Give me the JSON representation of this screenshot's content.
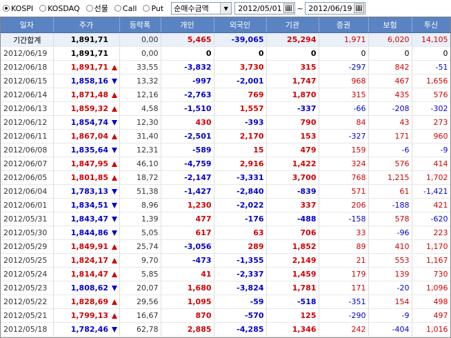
{
  "market_options": [
    {
      "label": "KOSPI",
      "selected": true
    },
    {
      "label": "KOSDAQ",
      "selected": false
    },
    {
      "label": "선물",
      "selected": false
    },
    {
      "label": "Call",
      "selected": false
    },
    {
      "label": "Put",
      "selected": false
    }
  ],
  "view_select": {
    "value": "순매수금액"
  },
  "date_range": {
    "from": "2012/05/01",
    "separator": "~",
    "to": "2012/06/19"
  },
  "colors": {
    "header": "#5a83c1",
    "up": "#d00000",
    "down": "#0000cc",
    "summary_row": "#eaf0f8"
  },
  "table": {
    "headers": [
      "일자",
      "주가",
      "등락폭",
      "개인",
      "외국인",
      "기관",
      "증권",
      "보험",
      "투신"
    ],
    "summary": {
      "date": "기간합계",
      "price": "1,891,71",
      "dir": "",
      "change": "0,00",
      "individual": "5,465",
      "foreign": "-39,065",
      "institution": "25,294",
      "securities": "1,971",
      "insurance": "6,020",
      "trust": "14,105"
    },
    "rows": [
      {
        "date": "2012/06/19",
        "price": "1,891,71",
        "dir": "",
        "change": "0,00",
        "individual": "0",
        "foreign": "0",
        "institution": "0",
        "securities": "0",
        "insurance": "0",
        "trust": "0"
      },
      {
        "date": "2012/06/18",
        "price": "1,891,71",
        "dir": "up",
        "change": "33,55",
        "individual": "-3,832",
        "foreign": "3,730",
        "institution": "315",
        "securities": "-297",
        "insurance": "842",
        "trust": "-51"
      },
      {
        "date": "2012/06/15",
        "price": "1,858,16",
        "dir": "down",
        "change": "13,32",
        "individual": "-997",
        "foreign": "-2,001",
        "institution": "1,747",
        "securities": "968",
        "insurance": "467",
        "trust": "1,656"
      },
      {
        "date": "2012/06/14",
        "price": "1,871,48",
        "dir": "up",
        "change": "12,16",
        "individual": "-2,763",
        "foreign": "769",
        "institution": "1,870",
        "securities": "315",
        "insurance": "435",
        "trust": "576"
      },
      {
        "date": "2012/06/13",
        "price": "1,859,32",
        "dir": "up",
        "change": "4,58",
        "individual": "-1,510",
        "foreign": "1,557",
        "institution": "-337",
        "securities": "-66",
        "insurance": "-208",
        "trust": "-302"
      },
      {
        "date": "2012/06/12",
        "price": "1,854,74",
        "dir": "down",
        "change": "12,30",
        "individual": "430",
        "foreign": "-393",
        "institution": "790",
        "securities": "84",
        "insurance": "43",
        "trust": "273"
      },
      {
        "date": "2012/06/11",
        "price": "1,867,04",
        "dir": "up",
        "change": "31,40",
        "individual": "-2,501",
        "foreign": "2,170",
        "institution": "153",
        "securities": "-327",
        "insurance": "171",
        "trust": "960"
      },
      {
        "date": "2012/06/08",
        "price": "1,835,64",
        "dir": "down",
        "change": "12,31",
        "individual": "-589",
        "foreign": "15",
        "institution": "479",
        "securities": "159",
        "insurance": "-6",
        "trust": "-9"
      },
      {
        "date": "2012/06/07",
        "price": "1,847,95",
        "dir": "up",
        "change": "46,10",
        "individual": "-4,759",
        "foreign": "2,916",
        "institution": "1,422",
        "securities": "324",
        "insurance": "576",
        "trust": "414"
      },
      {
        "date": "2012/06/05",
        "price": "1,801,85",
        "dir": "up",
        "change": "18,72",
        "individual": "-2,147",
        "foreign": "-3,331",
        "institution": "3,700",
        "securities": "768",
        "insurance": "1,215",
        "trust": "1,702"
      },
      {
        "date": "2012/06/04",
        "price": "1,783,13",
        "dir": "down",
        "change": "51,38",
        "individual": "-1,427",
        "foreign": "-2,840",
        "institution": "-839",
        "securities": "571",
        "insurance": "61",
        "trust": "-1,421"
      },
      {
        "date": "2012/06/01",
        "price": "1,834,51",
        "dir": "down",
        "change": "8,96",
        "individual": "1,230",
        "foreign": "-2,022",
        "institution": "337",
        "securities": "206",
        "insurance": "-188",
        "trust": "421"
      },
      {
        "date": "2012/05/31",
        "price": "1,843,47",
        "dir": "down",
        "change": "1,39",
        "individual": "477",
        "foreign": "-176",
        "institution": "-488",
        "securities": "-158",
        "insurance": "578",
        "trust": "-620"
      },
      {
        "date": "2012/05/30",
        "price": "1,844,86",
        "dir": "down",
        "change": "5,05",
        "individual": "617",
        "foreign": "63",
        "institution": "706",
        "securities": "33",
        "insurance": "-96",
        "trust": "223"
      },
      {
        "date": "2012/05/29",
        "price": "1,849,91",
        "dir": "up",
        "change": "25,74",
        "individual": "-3,056",
        "foreign": "289",
        "institution": "1,852",
        "securities": "89",
        "insurance": "410",
        "trust": "1,170"
      },
      {
        "date": "2012/05/25",
        "price": "1,824,17",
        "dir": "up",
        "change": "9,70",
        "individual": "-473",
        "foreign": "-1,355",
        "institution": "2,149",
        "securities": "21",
        "insurance": "553",
        "trust": "1,167"
      },
      {
        "date": "2012/05/24",
        "price": "1,814,47",
        "dir": "up",
        "change": "5,85",
        "individual": "41",
        "foreign": "-2,337",
        "institution": "1,459",
        "securities": "179",
        "insurance": "139",
        "trust": "730"
      },
      {
        "date": "2012/05/23",
        "price": "1,808,62",
        "dir": "down",
        "change": "20,07",
        "individual": "1,680",
        "foreign": "-3,824",
        "institution": "1,781",
        "securities": "171",
        "insurance": "-20",
        "trust": "1,096"
      },
      {
        "date": "2012/05/22",
        "price": "1,828,69",
        "dir": "up",
        "change": "29,56",
        "individual": "1,095",
        "foreign": "-59",
        "institution": "-518",
        "securities": "-351",
        "insurance": "154",
        "trust": "498"
      },
      {
        "date": "2012/05/21",
        "price": "1,799,13",
        "dir": "up",
        "change": "16,67",
        "individual": "870",
        "foreign": "-570",
        "institution": "125",
        "securities": "-290",
        "insurance": "-9",
        "trust": "497"
      },
      {
        "date": "2012/05/18",
        "price": "1,782,46",
        "dir": "down",
        "change": "62,78",
        "individual": "2,885",
        "foreign": "-4,285",
        "institution": "1,346",
        "securities": "242",
        "insurance": "-404",
        "trust": "1,016"
      }
    ]
  }
}
